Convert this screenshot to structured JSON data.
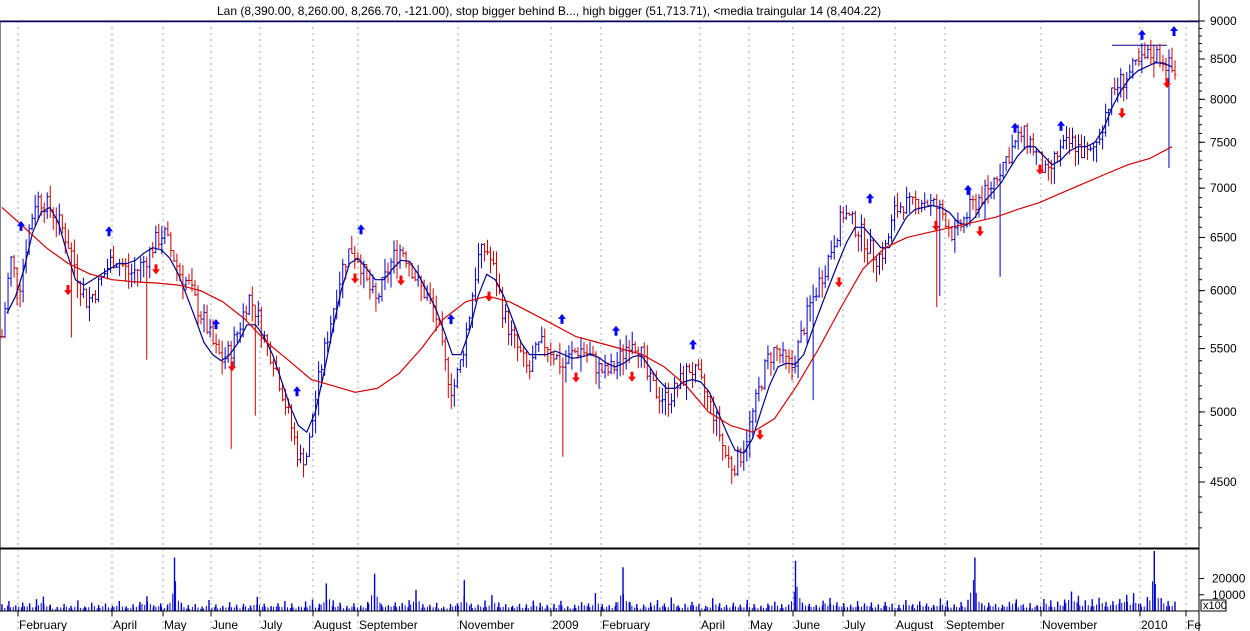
{
  "header": {
    "text": "Lan (8,390.00, 8,260.00, 8,266.70, -121.00), stop bigger behind B..., high bigger (51,713.71), <media traingular 14 (8,404.22)"
  },
  "colors": {
    "up_bar": "#0000cc",
    "down_bar": "#cc0000",
    "fast_ma": "#00008b",
    "slow_ma": "#d40000",
    "up_arrow": "#0000ff",
    "down_arrow": "#ff0000",
    "grid": "#a0a0a0",
    "volume": "#0000cc"
  },
  "chart_data": [
    {
      "type": "line",
      "panel": "price",
      "y_scale": "log",
      "ylim": [
        4100,
        9200
      ],
      "yticks": [
        "9000",
        "8500",
        "8000",
        "7500",
        "7000",
        "6500",
        "6000",
        "5500",
        "5000",
        "4500"
      ],
      "x_labels": [
        "February",
        "April",
        "May",
        "June",
        "July",
        "August",
        "September",
        "November",
        "2009",
        "February",
        "April",
        "May",
        "June",
        "July",
        "August",
        "September",
        "November",
        "2010",
        "Fe"
      ],
      "resistance_line": 8990,
      "series": [
        {
          "kind": "price-bars",
          "values": [
            5600,
            6300,
            6000,
            6500,
            6900,
            6850,
            6750,
            6600,
            6400,
            6100,
            5900,
            6000,
            6150,
            6300,
            6250,
            6150,
            6200,
            6300,
            6450,
            6550,
            6350,
            6150,
            6050,
            5850,
            5700,
            5500,
            5400,
            5500,
            5700,
            5950,
            5800,
            5550,
            5400,
            5150,
            4900,
            4650,
            4700,
            5150,
            5500,
            5850,
            6200,
            6400,
            6300,
            6050,
            5900,
            6100,
            6300,
            6400,
            6250,
            6050,
            5950,
            5800,
            5400,
            5150,
            5400,
            5800,
            6300,
            6400,
            6150,
            5800,
            5600,
            5450,
            5300,
            5500,
            5550,
            5450,
            5350,
            5450,
            5500,
            5450,
            5350,
            5300,
            5350,
            5450,
            5600,
            5500,
            5250,
            5150,
            5100,
            5150,
            5250,
            5350,
            5250,
            5100,
            4950,
            4700,
            4600,
            4700,
            4900,
            5150,
            5400,
            5500,
            5400,
            5350,
            5600,
            5850,
            6050,
            6250,
            6500,
            6750,
            6650,
            6550,
            6400,
            6300,
            6400,
            6750,
            6850,
            6800,
            6900,
            6850,
            6800,
            6700,
            6500,
            6650,
            6800,
            6900,
            6950,
            7150,
            7300,
            7450,
            7600,
            7500,
            7300,
            7100,
            7350,
            7450,
            7500,
            7400,
            7350,
            7550,
            7900,
            8150,
            8250,
            8350,
            8450,
            8550,
            8550,
            8450,
            8300
          ]
        },
        {
          "kind": "moving-average-fast",
          "values": [
            5800,
            5950,
            6200,
            6550,
            6750,
            6800,
            6650,
            6350,
            6100,
            6050,
            6100,
            6150,
            6200,
            6250,
            6250,
            6280,
            6350,
            6400,
            6380,
            6300,
            6150,
            5950,
            5750,
            5550,
            5450,
            5400,
            5450,
            5550,
            5700,
            5700,
            5600,
            5450,
            5250,
            5050,
            4900,
            4850,
            5000,
            5300,
            5650,
            6000,
            6250,
            6300,
            6200,
            6100,
            6100,
            6200,
            6280,
            6270,
            6150,
            6000,
            5850,
            5650,
            5450,
            5450,
            5650,
            5950,
            6150,
            6100,
            5950,
            5750,
            5550,
            5450,
            5450,
            5450,
            5480,
            5450,
            5420,
            5430,
            5450,
            5430,
            5380,
            5350,
            5380,
            5430,
            5450,
            5350,
            5250,
            5180,
            5180,
            5230,
            5250,
            5230,
            5150,
            5000,
            4850,
            4720,
            4700,
            4800,
            5000,
            5200,
            5350,
            5380,
            5370,
            5450,
            5650,
            5850,
            6050,
            6250,
            6450,
            6600,
            6600,
            6500,
            6400,
            6400,
            6550,
            6700,
            6780,
            6800,
            6820,
            6800,
            6750,
            6650,
            6620,
            6700,
            6850,
            6950,
            7050,
            7200,
            7350,
            7450,
            7450,
            7350,
            7250,
            7300,
            7400,
            7450,
            7450,
            7500,
            7650,
            7900,
            8100,
            8250,
            8350,
            8400,
            8450,
            8450,
            8400
          ]
        },
        {
          "kind": "moving-average-slow",
          "values": [
            6800,
            6600,
            6400,
            6250,
            6150,
            6100,
            6080,
            6070,
            6050,
            6000,
            5900,
            5750,
            5550,
            5400,
            5250,
            5200,
            5150,
            5180,
            5300,
            5500,
            5750,
            5900,
            5950,
            5900,
            5800,
            5700,
            5600,
            5550,
            5500,
            5450,
            5350,
            5200,
            5000,
            4900,
            4850,
            4950,
            5200,
            5500,
            5850,
            6200,
            6400,
            6500,
            6550,
            6600,
            6650,
            6700,
            6780,
            6850,
            6950,
            7050,
            7150,
            7250,
            7320,
            7450
          ]
        }
      ],
      "up_arrows": 15,
      "down_arrows": 15
    },
    {
      "type": "bar",
      "panel": "volume",
      "unit_label": "x100",
      "yticks": [
        "20000",
        "10000"
      ],
      "ylim": [
        0,
        37000
      ],
      "values": [
        4200,
        6100,
        3500,
        5200,
        4800,
        7300,
        8900,
        3900,
        2500,
        4400,
        3200,
        6500,
        2800,
        5100,
        3700,
        4600,
        3300,
        6200,
        2900,
        4100,
        5600,
        9100,
        3500,
        4700,
        4000,
        33000,
        5100,
        3600,
        4300,
        2700,
        6800,
        4100,
        3200,
        5400,
        3900,
        4400,
        3400,
        8700,
        4500,
        3100,
        4800,
        6200,
        4700,
        2800,
        5900,
        7100,
        4500,
        17000,
        6600,
        5200,
        3100,
        4800,
        3400,
        5600,
        23000,
        4100,
        3600,
        5300,
        4900,
        6700,
        13000,
        4200,
        3800,
        5100,
        2600,
        4300,
        4700,
        19000,
        4500,
        3900,
        6500,
        9800,
        5300,
        4200,
        3300,
        4400,
        4100,
        6400,
        5100,
        3700,
        4400,
        6300,
        2900,
        3800,
        5400,
        4700,
        11000,
        4100,
        3600,
        5400,
        27000,
        5600,
        4300,
        3900,
        5200,
        6700,
        4600,
        8300,
        3500,
        4400,
        5700,
        4200,
        3100,
        7900,
        4800,
        3700,
        5100,
        3900,
        6900,
        4300,
        3300,
        4600,
        5800,
        4200,
        3900,
        31000,
        5200,
        4500,
        3700,
        6400,
        8100,
        5400,
        4800,
        3900,
        6200,
        4700,
        5300,
        4100,
        5600,
        4500,
        3800,
        6800,
        4200,
        5900,
        4600,
        3700,
        7800,
        6500,
        4100,
        5500,
        6900,
        33000,
        4800,
        5200,
        4300,
        3800,
        5600,
        7200,
        4100,
        4900,
        3600,
        7400,
        6600,
        5800,
        7100,
        12000,
        9400,
        6600,
        7300,
        8200,
        5600,
        6100,
        7400,
        10000,
        11000,
        4500,
        8600,
        37000,
        7900,
        6200,
        5800
      ]
    }
  ]
}
